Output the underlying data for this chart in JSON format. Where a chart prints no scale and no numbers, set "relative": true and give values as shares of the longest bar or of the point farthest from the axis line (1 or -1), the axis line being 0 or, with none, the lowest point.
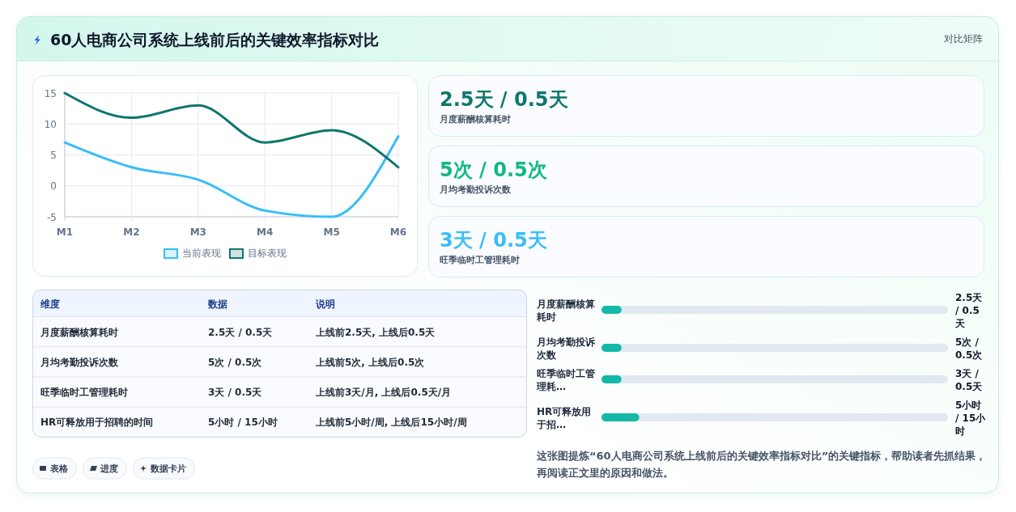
{
  "chart_data": [
    {
      "type": "other",
      "title": "60人电商公司系统上线前后的关键效率指标对比",
      "annotations": [
        "对比矩阵"
      ]
    },
    {
      "type": "line",
      "categories": [
        "M1",
        "M2",
        "M3",
        "M4",
        "M5",
        "M6"
      ],
      "series": [
        {
          "name": "当前表现",
          "color": "#38bdf8",
          "values": [
            7,
            3,
            1,
            -4,
            -5,
            8
          ]
        },
        {
          "name": "目标表现",
          "color": "#0f766e",
          "values": [
            15,
            11,
            13,
            7,
            9,
            3
          ]
        }
      ],
      "ylim": [
        -5,
        15
      ],
      "yticks": [
        -5,
        0,
        5,
        10,
        15
      ],
      "grid": true,
      "legend": "bottom"
    },
    {
      "type": "other",
      "categories": [
        "月度薪酬核算耗时",
        "月均考勤投诉次数",
        "旺季临时工管理耗时"
      ],
      "value_labels": [
        "2.5天 / 0.5天",
        "5次 / 0.5次",
        "3天 / 0.5天"
      ]
    },
    {
      "type": "other",
      "categories": [
        "维度",
        "数据",
        "说明"
      ],
      "cell_labels": [
        [
          "月度薪酬核算耗时",
          "2.5天 / 0.5天",
          "上线前2.5天, 上线后0.5天"
        ],
        [
          "月均考勤投诉次数",
          "5次 / 0.5次",
          "上线前5次, 上线后0.5次"
        ],
        [
          "旺季临时工管理耗时",
          "3天 / 0.5天",
          "上线前3天/月, 上线后0.5天/月"
        ],
        [
          "HR可释放用于招聘的时间",
          "5小时 / 15小时",
          "上线前5小时/周, 上线后15小时/周"
        ]
      ]
    },
    {
      "type": "bar",
      "orientation": "horizontal",
      "relative": true,
      "categories": [
        "月度薪酬核算耗时",
        "月均考勤投诉次数",
        "旺季临时工管理耗…",
        "HR可释放用于招…"
      ],
      "values": [
        0.53,
        0.53,
        0.53,
        1
      ],
      "annotations": [
        "2.5天 / 0.5天",
        "5次 / 0.5次",
        "3天 / 0.5天",
        "5小时 / 15小时"
      ],
      "color": "#14b8a6"
    },
    {
      "type": "other",
      "categories": [
        "表格",
        "进度",
        "数据卡片"
      ],
      "annotations": [
        "这张图提炼“60人电商公司系统上线前后的关键效率指标对比”的关键指标，帮助读者先抓结果，再阅读正文里的原因和做法。"
      ]
    }
  ]
}
